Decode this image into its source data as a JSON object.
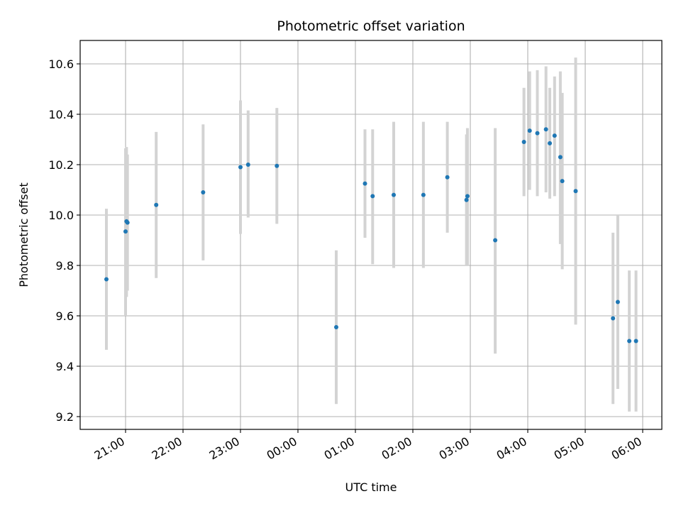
{
  "chart_data": {
    "type": "scatter",
    "title": "Photometric offset variation",
    "xlabel": "UTC time",
    "ylabel": "Photometric offset",
    "x_tick_labels": [
      "21:00",
      "22:00",
      "23:00",
      "00:00",
      "01:00",
      "02:00",
      "03:00",
      "04:00",
      "05:00",
      "06:00"
    ],
    "y_tick_labels": [
      "9.2",
      "9.4",
      "9.6",
      "9.8",
      "10.0",
      "10.2",
      "10.4",
      "10.6"
    ],
    "grid": true,
    "colors": {
      "point": "#1f77b4",
      "errorbar": "#d3d3d3",
      "grid": "#b0b0b0"
    },
    "points": [
      {
        "time": "20:40",
        "y": 9.745,
        "err_low": 9.465,
        "err_high": 10.025
      },
      {
        "time": "21:00",
        "y": 9.935,
        "err_low": 9.6,
        "err_high": 10.265
      },
      {
        "time": "21:01",
        "y": 9.975,
        "err_low": 9.675,
        "err_high": 10.27
      },
      {
        "time": "21:02",
        "y": 9.97,
        "err_low": 9.7,
        "err_high": 10.24
      },
      {
        "time": "21:32",
        "y": 10.04,
        "err_low": 9.75,
        "err_high": 10.33
      },
      {
        "time": "22:21",
        "y": 10.09,
        "err_low": 9.82,
        "err_high": 10.36
      },
      {
        "time": "23:00",
        "y": 10.19,
        "err_low": 9.925,
        "err_high": 10.455
      },
      {
        "time": "23:08",
        "y": 10.2,
        "err_low": 9.99,
        "err_high": 10.415
      },
      {
        "time": "23:38",
        "y": 10.195,
        "err_low": 9.965,
        "err_high": 10.425
      },
      {
        "time": "00:40",
        "y": 9.555,
        "err_low": 9.25,
        "err_high": 9.86
      },
      {
        "time": "01:10",
        "y": 10.125,
        "err_low": 9.91,
        "err_high": 10.34
      },
      {
        "time": "01:18",
        "y": 10.075,
        "err_low": 9.805,
        "err_high": 10.34
      },
      {
        "time": "01:40",
        "y": 10.08,
        "err_low": 9.79,
        "err_high": 10.37
      },
      {
        "time": "02:11",
        "y": 10.08,
        "err_low": 9.79,
        "err_high": 10.37
      },
      {
        "time": "02:36",
        "y": 10.15,
        "err_low": 9.93,
        "err_high": 10.37
      },
      {
        "time": "02:56",
        "y": 10.06,
        "err_low": 9.8,
        "err_high": 10.32
      },
      {
        "time": "02:57",
        "y": 10.075,
        "err_low": 9.8,
        "err_high": 10.345
      },
      {
        "time": "03:26",
        "y": 9.9,
        "err_low": 9.45,
        "err_high": 10.345
      },
      {
        "time": "03:56",
        "y": 10.29,
        "err_low": 10.075,
        "err_high": 10.505
      },
      {
        "time": "04:02",
        "y": 10.335,
        "err_low": 10.1,
        "err_high": 10.57
      },
      {
        "time": "04:10",
        "y": 10.325,
        "err_low": 10.075,
        "err_high": 10.575
      },
      {
        "time": "04:19",
        "y": 10.34,
        "err_low": 10.09,
        "err_high": 10.59
      },
      {
        "time": "04:23",
        "y": 10.285,
        "err_low": 10.065,
        "err_high": 10.505
      },
      {
        "time": "04:28",
        "y": 10.315,
        "err_low": 10.075,
        "err_high": 10.55
      },
      {
        "time": "04:34",
        "y": 10.23,
        "err_low": 9.885,
        "err_high": 10.57
      },
      {
        "time": "04:36",
        "y": 10.135,
        "err_low": 9.785,
        "err_high": 10.485
      },
      {
        "time": "04:50",
        "y": 10.095,
        "err_low": 9.565,
        "err_high": 10.625
      },
      {
        "time": "05:29",
        "y": 9.59,
        "err_low": 9.25,
        "err_high": 9.93
      },
      {
        "time": "05:34",
        "y": 9.655,
        "err_low": 9.31,
        "err_high": 10.0
      },
      {
        "time": "05:46",
        "y": 9.5,
        "err_low": 9.22,
        "err_high": 9.78
      },
      {
        "time": "05:53",
        "y": 9.5,
        "err_low": 9.22,
        "err_high": 9.78
      }
    ]
  }
}
